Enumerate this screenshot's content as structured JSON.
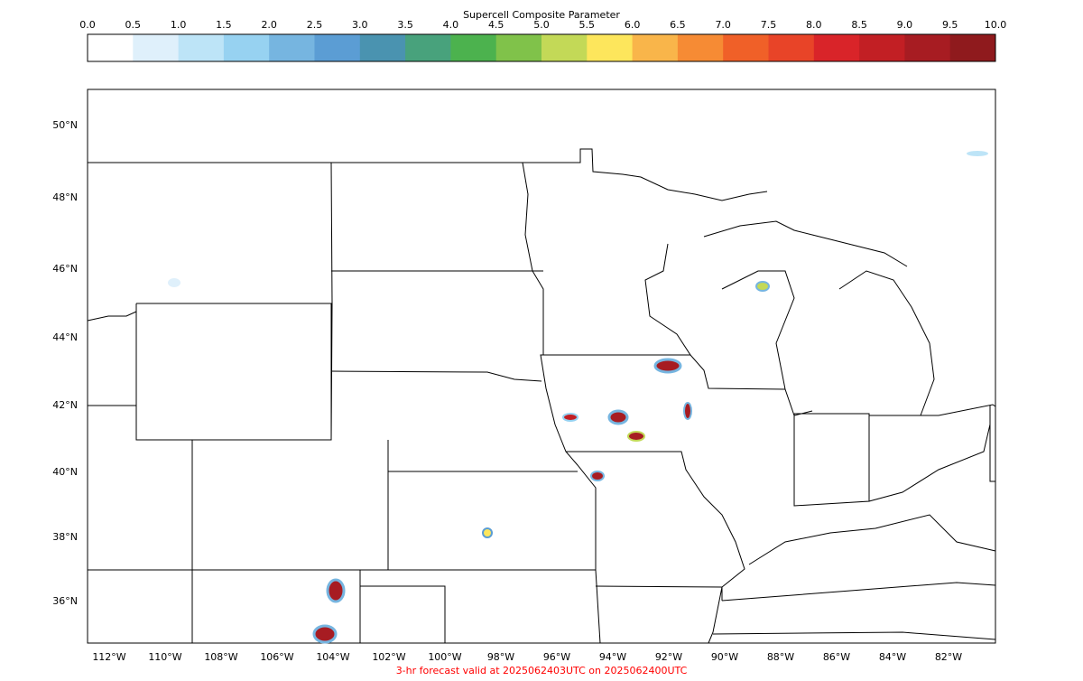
{
  "colorbar": {
    "title": "Supercell Composite Parameter",
    "ticks": [
      "0.0",
      "0.5",
      "1.0",
      "1.5",
      "2.0",
      "2.5",
      "3.0",
      "3.5",
      "4.0",
      "4.5",
      "5.0",
      "5.5",
      "6.0",
      "6.5",
      "7.0",
      "7.5",
      "8.0",
      "8.5",
      "9.0",
      "9.5",
      "10.0"
    ],
    "colors": [
      "#ffffff",
      "#dff0fb",
      "#bde4f7",
      "#97d2f1",
      "#76b5e0",
      "#5b9dd4",
      "#4a93b0",
      "#48a27c",
      "#4cb24e",
      "#80c24a",
      "#c3d957",
      "#fde65c",
      "#f9b54a",
      "#f68b34",
      "#f06028",
      "#e84428",
      "#d92429",
      "#c21f24",
      "#a71c22",
      "#8f1a1d"
    ]
  },
  "map": {
    "lat_labels": [
      "50°N",
      "48°N",
      "46°N",
      "44°N",
      "42°N",
      "40°N",
      "38°N",
      "36°N"
    ],
    "lon_labels": [
      "112°W",
      "110°W",
      "108°W",
      "106°W",
      "104°W",
      "102°W",
      "100°W",
      "98°W",
      "96°W",
      "94°W",
      "92°W",
      "90°W",
      "88°W",
      "86°W",
      "84°W",
      "82°W"
    ]
  },
  "footer": "3-hr forecast valid at 2025062403UTC on 2025062400UTC"
}
